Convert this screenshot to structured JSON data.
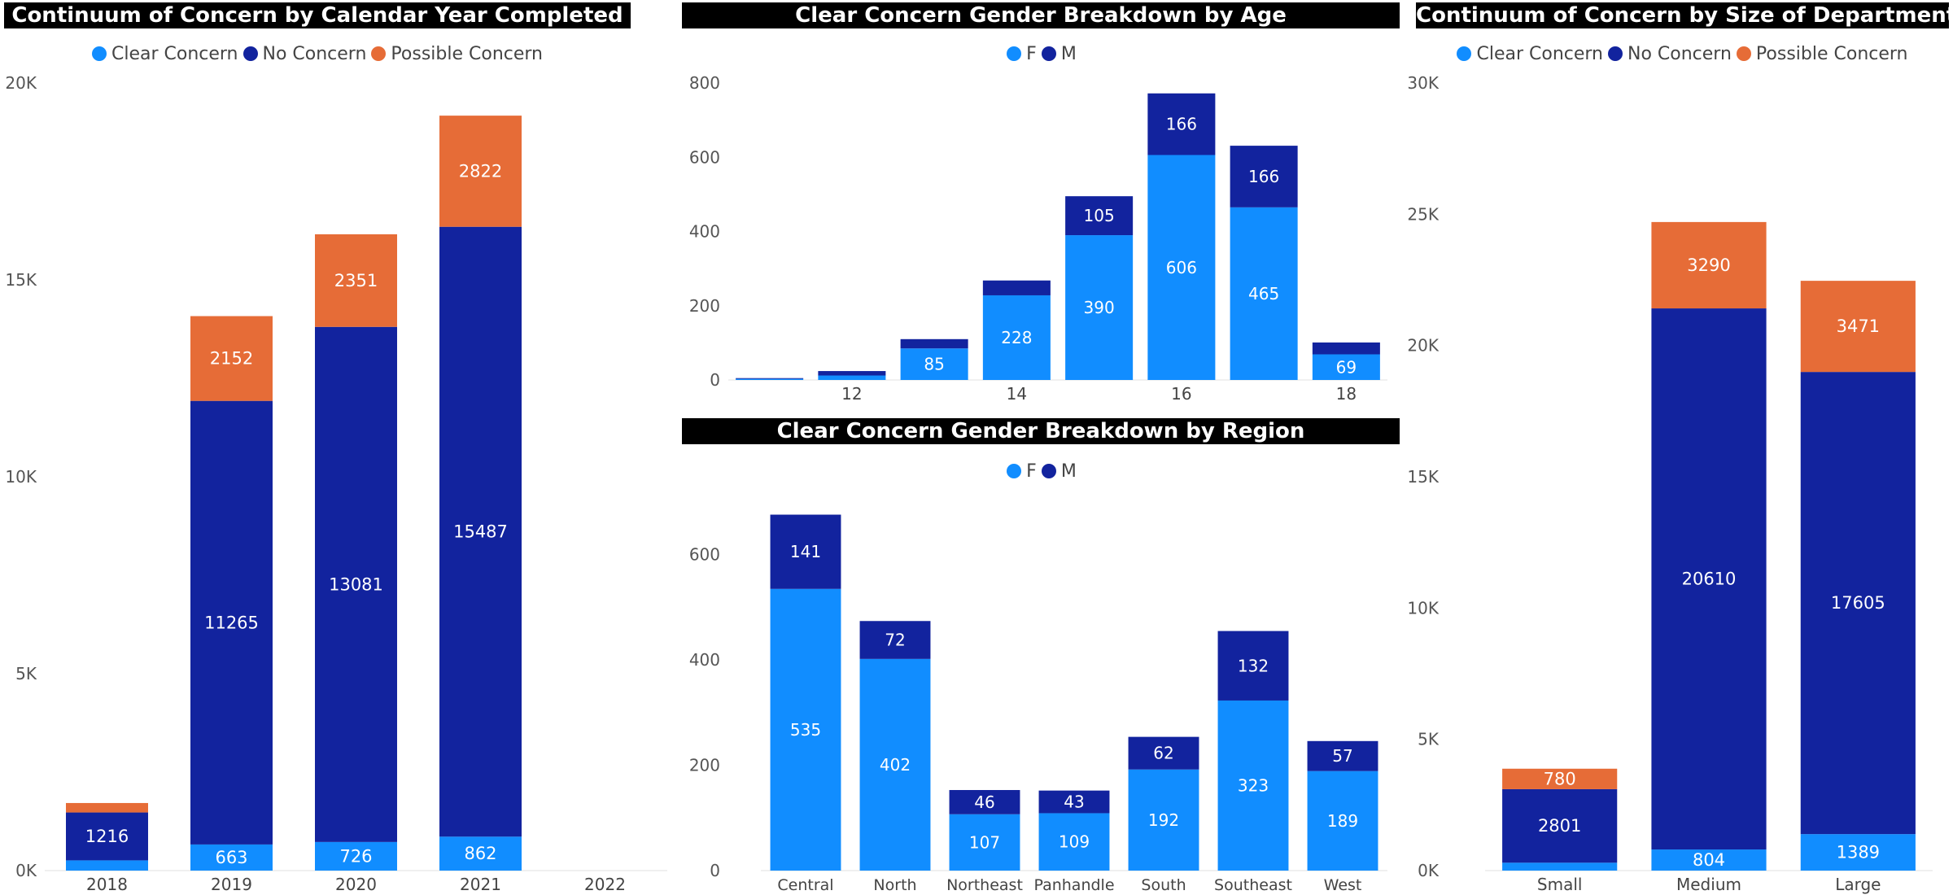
{
  "colors": {
    "clear": "#118DFF",
    "no": "#12239E",
    "possible": "#E66C37",
    "f": "#118DFF",
    "m": "#12239E"
  },
  "charts": {
    "year": {
      "title": "Continuum of Concern by Calendar Year Completed",
      "legend": [
        "Clear Concern",
        "No Concern",
        "Possible Concern"
      ]
    },
    "age": {
      "title": "Clear Concern Gender Breakdown by Age",
      "legend": [
        "F",
        "M"
      ]
    },
    "region": {
      "title": "Clear Concern Gender Breakdown by Region",
      "legend": [
        "F",
        "M"
      ]
    },
    "size": {
      "title": "Continuum of Concern by Size of Department",
      "legend": [
        "Clear Concern",
        "No Concern",
        "Possible Concern"
      ]
    }
  },
  "chart_data": [
    {
      "id": "year",
      "type": "bar",
      "stacked": true,
      "title": "Continuum of Concern by Calendar Year Completed",
      "categories": [
        "2018",
        "2019",
        "2020",
        "2021",
        "2022"
      ],
      "series": [
        {
          "name": "Clear Concern",
          "values": [
            260,
            663,
            726,
            862,
            0
          ],
          "labels": [
            "",
            "663",
            "726",
            "862",
            ""
          ]
        },
        {
          "name": "No Concern",
          "values": [
            1216,
            11265,
            13081,
            15487,
            0
          ],
          "labels": [
            "1216",
            "11265",
            "13081",
            "15487",
            ""
          ]
        },
        {
          "name": "Possible Concern",
          "values": [
            240,
            2152,
            2351,
            2822,
            0
          ],
          "labels": [
            "",
            "2152",
            "2351",
            "2822",
            ""
          ]
        }
      ],
      "ylim": [
        0,
        20000
      ],
      "yticks": [
        0,
        5000,
        10000,
        15000,
        20000
      ],
      "ytick_labels": [
        "0K",
        "5K",
        "10K",
        "15K",
        "20K"
      ],
      "legend_position": "top"
    },
    {
      "id": "age",
      "type": "bar",
      "stacked": true,
      "title": "Clear Concern Gender Breakdown by Age",
      "categories": [
        "11",
        "12",
        "13",
        "14",
        "15",
        "16",
        "17",
        "18"
      ],
      "category_labels": [
        "",
        "12",
        "",
        "14",
        "",
        "16",
        "",
        "18"
      ],
      "series": [
        {
          "name": "F",
          "values": [
            3,
            12,
            85,
            228,
            390,
            606,
            465,
            69
          ],
          "labels": [
            "",
            "",
            "85",
            "228",
            "390",
            "606",
            "465",
            "69"
          ]
        },
        {
          "name": "M",
          "values": [
            2,
            12,
            25,
            40,
            105,
            166,
            166,
            32
          ],
          "labels": [
            "",
            "",
            "",
            "",
            "105",
            "166",
            "166",
            ""
          ]
        }
      ],
      "ylim": [
        0,
        800
      ],
      "yticks": [
        0,
        200,
        400,
        600,
        800
      ],
      "ytick_labels": [
        "0",
        "200",
        "400",
        "600",
        "800"
      ],
      "legend_position": "top"
    },
    {
      "id": "region",
      "type": "bar",
      "stacked": true,
      "title": "Clear Concern Gender Breakdown by Region",
      "categories": [
        "Central",
        "North",
        "Northeast",
        "Panhandle",
        "South",
        "Southeast",
        "West"
      ],
      "series": [
        {
          "name": "F",
          "values": [
            535,
            402,
            107,
            109,
            192,
            323,
            189
          ],
          "labels": [
            "535",
            "402",
            "107",
            "109",
            "192",
            "323",
            "189"
          ]
        },
        {
          "name": "M",
          "values": [
            141,
            72,
            46,
            43,
            62,
            132,
            57
          ],
          "labels": [
            "141",
            "72",
            "46",
            "43",
            "62",
            "132",
            "57"
          ]
        }
      ],
      "ylim": [
        0,
        700
      ],
      "yticks": [
        0,
        200,
        400,
        600
      ],
      "ytick_labels": [
        "0",
        "200",
        "400",
        "600"
      ],
      "legend_position": "top"
    },
    {
      "id": "size",
      "type": "bar",
      "stacked": true,
      "title": "Continuum of Concern by Size of Department",
      "categories": [
        "Small",
        "Medium",
        "Large"
      ],
      "series": [
        {
          "name": "Clear Concern",
          "values": [
            300,
            804,
            1389
          ],
          "labels": [
            "",
            "804",
            "1389"
          ]
        },
        {
          "name": "No Concern",
          "values": [
            2801,
            20610,
            17605
          ],
          "labels": [
            "2801",
            "20610",
            "17605"
          ]
        },
        {
          "name": "Possible Concern",
          "values": [
            780,
            3290,
            3471
          ],
          "labels": [
            "780",
            "3290",
            "3471"
          ]
        }
      ],
      "ylim": [
        0,
        30000
      ],
      "yticks": [
        0,
        5000,
        10000,
        15000,
        20000,
        25000,
        30000
      ],
      "ytick_labels": [
        "0K",
        "5K",
        "10K",
        "15K",
        "20K",
        "25K",
        "30K"
      ],
      "legend_position": "top"
    }
  ]
}
